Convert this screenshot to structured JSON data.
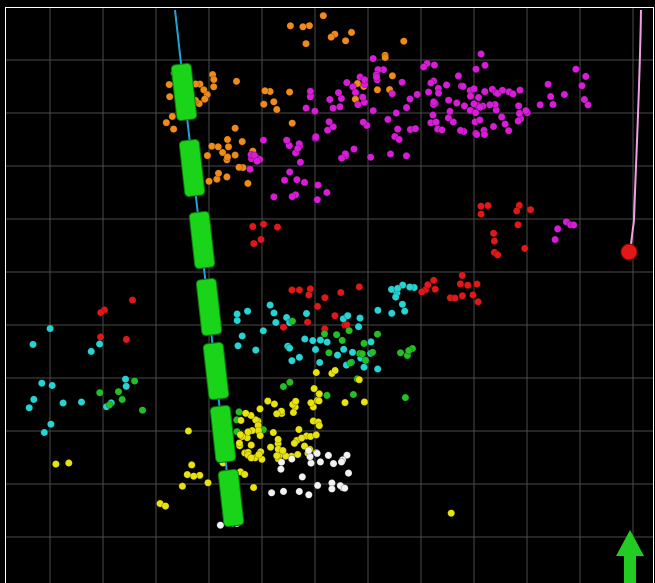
{
  "viewer": {
    "background": "#000000",
    "frame_color": "#ffffff",
    "grid_color": "#4a4a4a"
  },
  "well": {
    "line_color": "#1fa3d6",
    "segment_color": "#19d419",
    "segment_count": 8
  },
  "scatter": {
    "clusters": [
      {
        "name": "orange",
        "color": "#f08a18"
      },
      {
        "name": "magenta",
        "color": "#d81cd8"
      },
      {
        "name": "red",
        "color": "#e01818"
      },
      {
        "name": "cyan",
        "color": "#27d4d4"
      },
      {
        "name": "green",
        "color": "#22c022"
      },
      {
        "name": "yellow",
        "color": "#e8e20e"
      },
      {
        "name": "white",
        "color": "#f2f2f2"
      }
    ]
  },
  "right_trace": {
    "line_color": "#f0a0e6",
    "marker_color": "#e01818"
  },
  "north_arrow": {
    "icon": "north-arrow-icon",
    "color": "#22cc22"
  }
}
